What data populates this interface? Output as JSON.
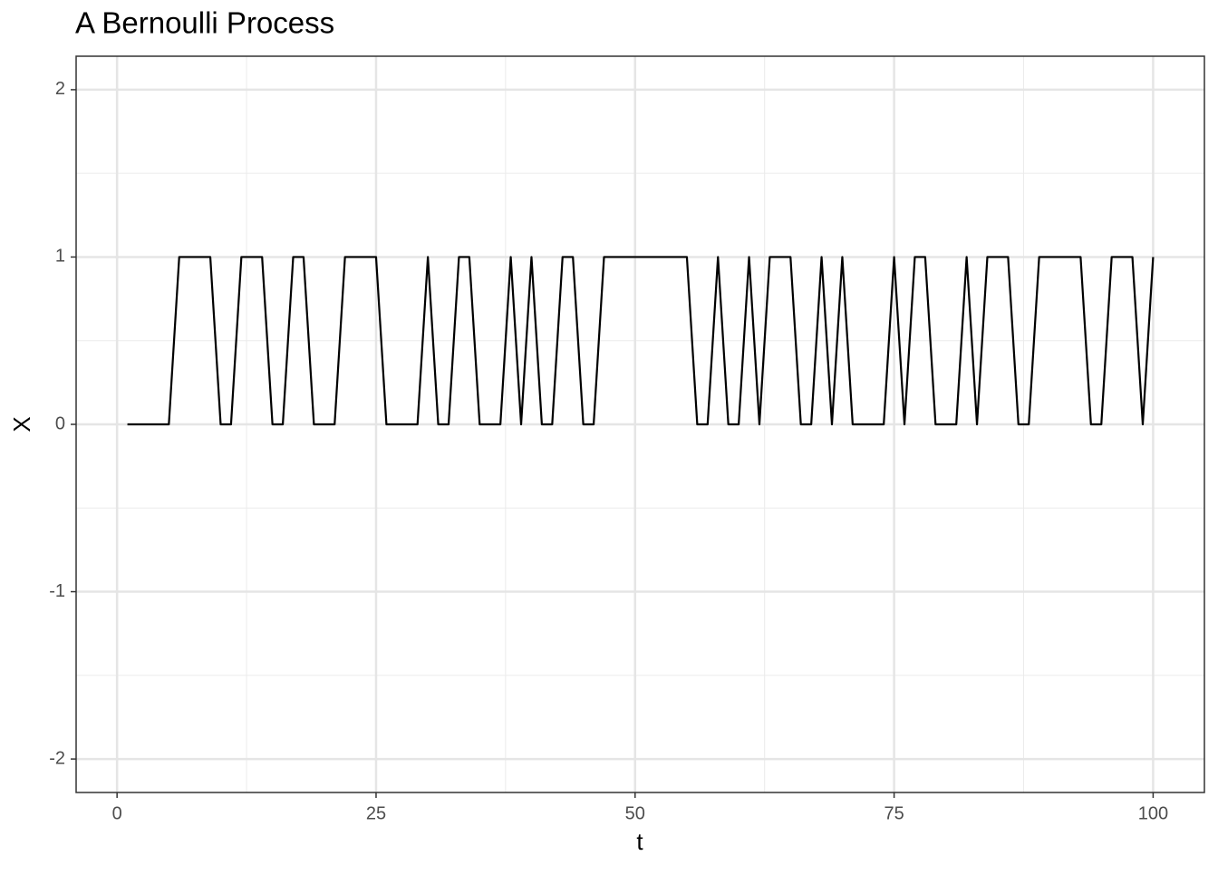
{
  "chart_data": {
    "type": "line",
    "title": "A Bernoulli Process",
    "x_label": "t",
    "y_label": "X",
    "x": [
      1,
      2,
      3,
      4,
      5,
      6,
      7,
      8,
      9,
      10,
      11,
      12,
      13,
      14,
      15,
      16,
      17,
      18,
      19,
      20,
      21,
      22,
      23,
      24,
      25,
      26,
      27,
      28,
      29,
      30,
      31,
      32,
      33,
      34,
      35,
      36,
      37,
      38,
      39,
      40,
      41,
      42,
      43,
      44,
      45,
      46,
      47,
      48,
      49,
      50,
      51,
      52,
      53,
      54,
      55,
      56,
      57,
      58,
      59,
      60,
      61,
      62,
      63,
      64,
      65,
      66,
      67,
      68,
      69,
      70,
      71,
      72,
      73,
      74,
      75,
      76,
      77,
      78,
      79,
      80,
      81,
      82,
      83,
      84,
      85,
      86,
      87,
      88,
      89,
      90,
      91,
      92,
      93,
      94,
      95,
      96,
      97,
      98,
      99,
      100
    ],
    "series": [
      {
        "color": "#000000",
        "values": [
          0,
          0,
          0,
          0,
          0,
          1,
          1,
          1,
          1,
          0,
          0,
          1,
          1,
          1,
          0,
          0,
          1,
          1,
          0,
          0,
          0,
          1,
          1,
          1,
          1,
          0,
          0,
          0,
          0,
          1,
          0,
          0,
          1,
          1,
          0,
          0,
          0,
          1,
          0,
          1,
          0,
          0,
          1,
          1,
          0,
          0,
          1,
          1,
          1,
          1,
          1,
          1,
          1,
          1,
          1,
          0,
          0,
          1,
          0,
          0,
          1,
          0,
          1,
          1,
          1,
          0,
          0,
          1,
          0,
          1,
          0,
          0,
          0,
          0,
          1,
          0,
          1,
          1,
          0,
          0,
          0,
          1,
          0,
          1,
          1,
          1,
          0,
          0,
          1,
          1,
          1,
          1,
          1,
          0,
          0,
          1,
          1,
          1,
          0,
          1
        ]
      }
    ],
    "xlim": [
      -3.95,
      104.95
    ],
    "xticks": [
      0,
      25,
      50,
      75,
      100
    ],
    "ylim": [
      -2.2,
      2.2
    ],
    "yticks": [
      -2,
      -1,
      0,
      1,
      2
    ],
    "grid": true
  }
}
